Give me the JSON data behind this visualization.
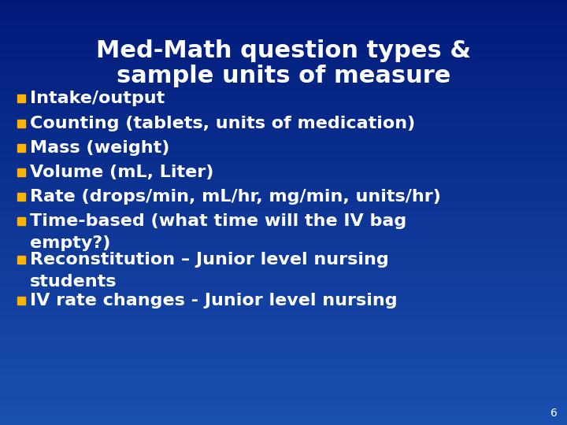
{
  "title_line1": "Med-Math question types &",
  "title_line2": "sample units of measure",
  "bullet_color": "#FFB300",
  "text_color": "#FFFFFF",
  "title_color": "#FFFFFF",
  "bg_color_top": "#001A7A",
  "bg_color_bottom": "#1A50B0",
  "slide_number": "6",
  "bullet_items_line1": [
    "Intake/output",
    "Counting (tablets, units of medication)",
    "Mass (weight)",
    "Volume (mL, Liter)",
    "Rate (drops/min, mL/hr, mg/min, units/hr)",
    "Time-based (what time will the IV bag",
    "Reconstitution – Junior level nursing",
    "IV rate changes - Junior level nursing"
  ],
  "bullet_items_line2": [
    "",
    "",
    "",
    "",
    "",
    "empty?)",
    "students",
    ""
  ],
  "title_fontsize": 22,
  "bullet_fontsize": 16,
  "slide_num_fontsize": 10
}
